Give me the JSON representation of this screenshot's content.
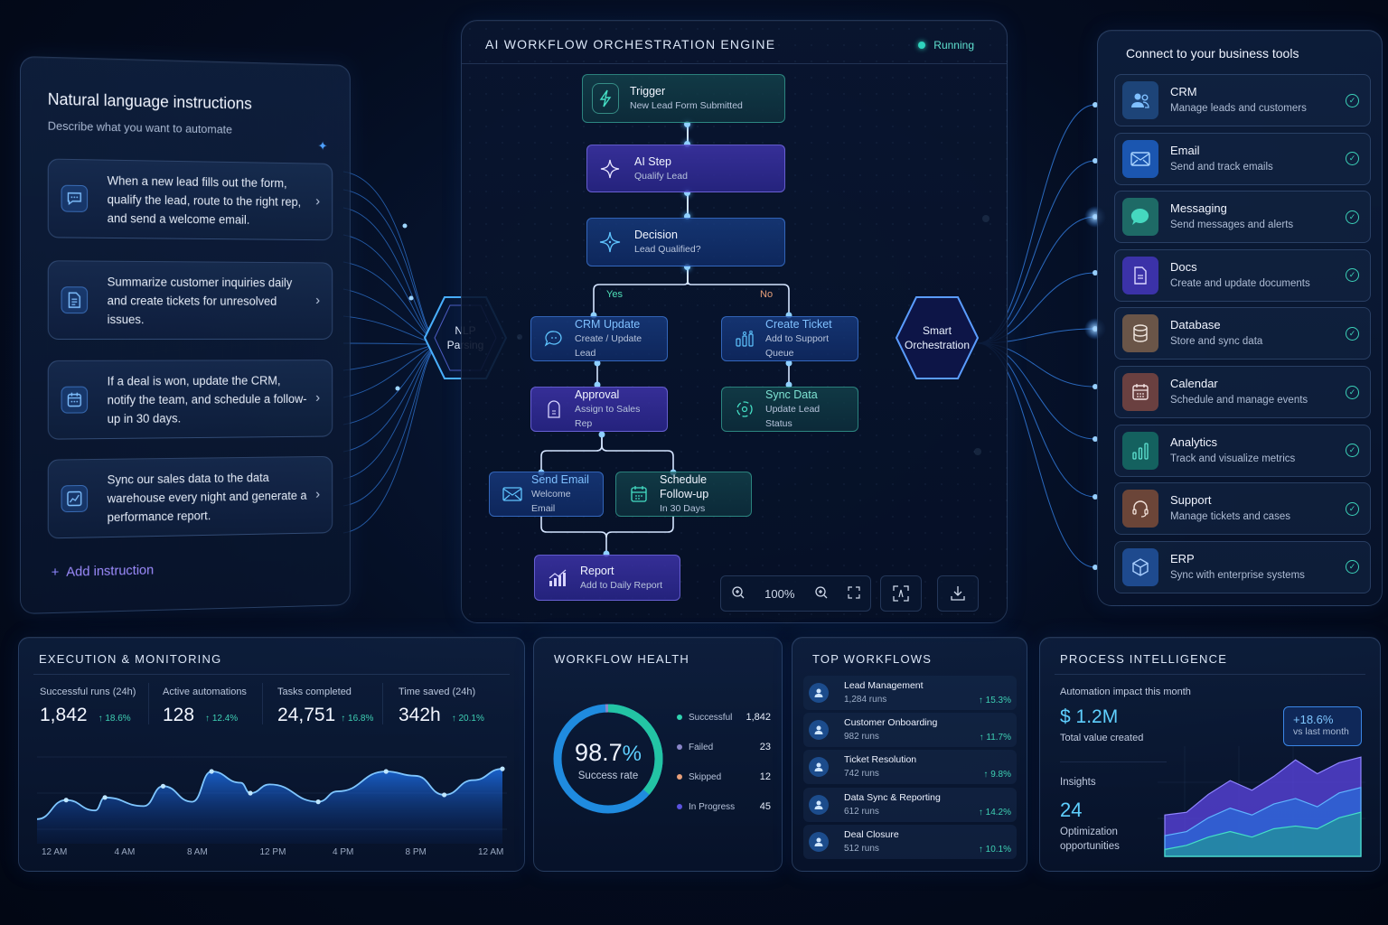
{
  "colors": {
    "accent_blue": "#4ea0ff",
    "teal": "#3bd1b8",
    "purple": "#6a5cff",
    "orange": "#e8a07a",
    "background": "#040c1f"
  },
  "left_panel": {
    "title": "Natural language instructions",
    "subtitle": "Describe what you want to automate",
    "sparkle_icon": "sparkle-icon",
    "instructions": [
      {
        "icon": "chat-bubble-icon",
        "text": "When a new lead fills out the form, qualify the lead, route to the right rep, and send a welcome email."
      },
      {
        "icon": "document-icon",
        "text": "Summarize customer inquiries daily and create tickets for unresolved issues."
      },
      {
        "icon": "calendar-icon",
        "text": "If a deal is won, update the CRM, notify the team, and schedule a follow-up in 30 days."
      },
      {
        "icon": "chart-line-icon",
        "text": "Sync our sales data to the data warehouse every night and generate a performance report."
      }
    ],
    "add_label": "Add instruction"
  },
  "hubs": {
    "nlp": "NLP Parsing",
    "smart": "Smart Orchestration"
  },
  "center_panel": {
    "title": "AI WORKFLOW ORCHESTRATION ENGINE",
    "status": "Running",
    "nodes": {
      "trigger": {
        "title": "Trigger",
        "subtitle": "New Lead Form Submitted",
        "icon": "lightning-icon"
      },
      "ai_step": {
        "title": "AI Step",
        "subtitle": "Qualify Lead",
        "icon": "sparkle-icon"
      },
      "decision": {
        "title": "Decision",
        "subtitle": "Lead Qualified?",
        "icon": "diamond-icon"
      },
      "crm_update": {
        "title": "CRM Update",
        "subtitle": "Create / Update Lead",
        "icon": "chat-icon"
      },
      "create_ticket": {
        "title": "Create Ticket",
        "subtitle": "Add to Support Queue",
        "icon": "queue-icon"
      },
      "approval": {
        "title": "Approval",
        "subtitle": "Assign to Sales Rep",
        "icon": "approval-icon"
      },
      "sync_data": {
        "title": "Sync Data",
        "subtitle": "Update Lead Status",
        "icon": "sync-icon"
      },
      "send_email": {
        "title": "Send Email",
        "subtitle": "Welcome Email",
        "icon": "envelope-icon"
      },
      "schedule": {
        "title": "Schedule Follow-up",
        "subtitle": "In 30 Days",
        "icon": "calendar-icon"
      },
      "report": {
        "title": "Report",
        "subtitle": "Add to Daily Report",
        "icon": "bar-chart-icon"
      }
    },
    "branches": {
      "yes": "Yes",
      "no": "No"
    },
    "toolbar": {
      "zoom_level": "100%"
    }
  },
  "right_panel": {
    "title": "Connect to your business tools",
    "tools": [
      {
        "name": "CRM",
        "desc": "Manage leads and customers",
        "icon": "users-icon",
        "bg": "#1d4478",
        "fg": "#7fbfff"
      },
      {
        "name": "Email",
        "desc": "Send and track emails",
        "icon": "envelope-icon",
        "bg": "#1b56b0",
        "fg": "#a9d4ff"
      },
      {
        "name": "Messaging",
        "desc": "Send messages and alerts",
        "icon": "message-icon",
        "bg": "#1e6a66",
        "fg": "#45d8bf"
      },
      {
        "name": "Docs",
        "desc": "Create and update documents",
        "icon": "document-icon",
        "bg": "#3b32a8",
        "fg": "#dad6ff"
      },
      {
        "name": "Database",
        "desc": "Store and sync data",
        "icon": "database-icon",
        "bg": "#6a5548",
        "fg": "#f0e6df"
      },
      {
        "name": "Calendar",
        "desc": "Schedule and manage events",
        "icon": "calendar-icon",
        "bg": "#6a4040",
        "fg": "#f3e3e3"
      },
      {
        "name": "Analytics",
        "desc": "Track and visualize metrics",
        "icon": "bar-chart-icon",
        "bg": "#14615f",
        "fg": "#5fe3d2"
      },
      {
        "name": "Support",
        "desc": "Manage tickets and cases",
        "icon": "headset-icon",
        "bg": "#6b4538",
        "fg": "#f3e3dc"
      },
      {
        "name": "ERP",
        "desc": "Sync with enterprise systems",
        "icon": "cube-icon",
        "bg": "#1e4a8e",
        "fg": "#a9cfff"
      }
    ]
  },
  "execution": {
    "title": "EXECUTION & MONITORING",
    "stats": [
      {
        "label": "Successful runs (24h)",
        "value": "1,842",
        "delta": "↑ 18.6%"
      },
      {
        "label": "Active automations",
        "value": "128",
        "delta": "↑ 12.4%"
      },
      {
        "label": "Tasks completed",
        "value": "24,751",
        "delta": "↑ 16.8%"
      },
      {
        "label": "Time saved (24h)",
        "value": "342h",
        "delta": "↑ 20.1%"
      }
    ],
    "x_ticks": [
      "12 AM",
      "4 AM",
      "8 AM",
      "12 PM",
      "4 PM",
      "8 PM",
      "12 AM"
    ]
  },
  "health": {
    "title": "WORKFLOW HEALTH",
    "rate": "98.7",
    "rate_unit": "%",
    "rate_label": "Success rate",
    "legend": [
      {
        "label": "Successful",
        "value": "1,842",
        "color": "#2fd3b0"
      },
      {
        "label": "Failed",
        "value": "23",
        "color": "#8a86c8"
      },
      {
        "label": "Skipped",
        "value": "12",
        "color": "#e8a07a"
      },
      {
        "label": "In Progress",
        "value": "45",
        "color": "#5a52e0"
      }
    ]
  },
  "top_workflows": {
    "title": "TOP WORKFLOWS",
    "items": [
      {
        "name": "Lead Management",
        "runs": "1,284 runs",
        "delta": "↑ 15.3%",
        "icon": "user-icon"
      },
      {
        "name": "Customer Onboarding",
        "runs": "982 runs",
        "delta": "↑ 11.7%",
        "icon": "user-icon"
      },
      {
        "name": "Ticket Resolution",
        "runs": "742 runs",
        "delta": "↑ 9.8%",
        "icon": "ticket-icon"
      },
      {
        "name": "Data Sync & Reporting",
        "runs": "612 runs",
        "delta": "↑ 14.2%",
        "icon": "sync-icon"
      },
      {
        "name": "Deal Closure",
        "runs": "512 runs",
        "delta": "↑ 10.1%",
        "icon": "cube-icon"
      }
    ]
  },
  "process_intelligence": {
    "title": "PROCESS INTELLIGENCE",
    "impact_label": "Automation impact this month",
    "value": "$ 1.2M",
    "value_label": "Total value created",
    "insights_label": "Insights",
    "insights_value": "24",
    "insights_desc_1": "Optimization",
    "insights_desc_2": "opportunities",
    "callout_value": "+18.6%",
    "callout_label": "vs last month"
  },
  "chart_data": [
    {
      "type": "area",
      "title": "Execution & Monitoring",
      "categories": [
        "12 AM",
        "4 AM",
        "8 AM",
        "12 PM",
        "4 PM",
        "8 PM",
        "12 AM"
      ],
      "x": [
        0,
        1.5,
        3,
        3.5,
        5.5,
        6.5,
        8,
        9,
        10.5,
        11,
        12,
        14.5,
        15.5,
        18,
        19.5,
        21,
        22.5,
        24
      ],
      "values": [
        20,
        42,
        30,
        45,
        35,
        58,
        40,
        75,
        62,
        50,
        60,
        40,
        52,
        75,
        70,
        48,
        65,
        78
      ],
      "ylabel": "",
      "grid": true
    },
    {
      "type": "pie",
      "title": "Workflow Health",
      "categories": [
        "Successful",
        "Failed",
        "Skipped",
        "In Progress"
      ],
      "values": [
        1842,
        23,
        12,
        45
      ]
    },
    {
      "type": "area",
      "title": "Process Intelligence",
      "series": [
        {
          "name": "top",
          "values": [
            30,
            32,
            45,
            55,
            48,
            58,
            70,
            60,
            68,
            72
          ]
        },
        {
          "name": "middle",
          "values": [
            15,
            18,
            28,
            35,
            30,
            38,
            42,
            36,
            46,
            50
          ]
        },
        {
          "name": "bottom",
          "values": [
            5,
            8,
            14,
            18,
            14,
            20,
            22,
            20,
            28,
            32
          ]
        }
      ]
    }
  ]
}
